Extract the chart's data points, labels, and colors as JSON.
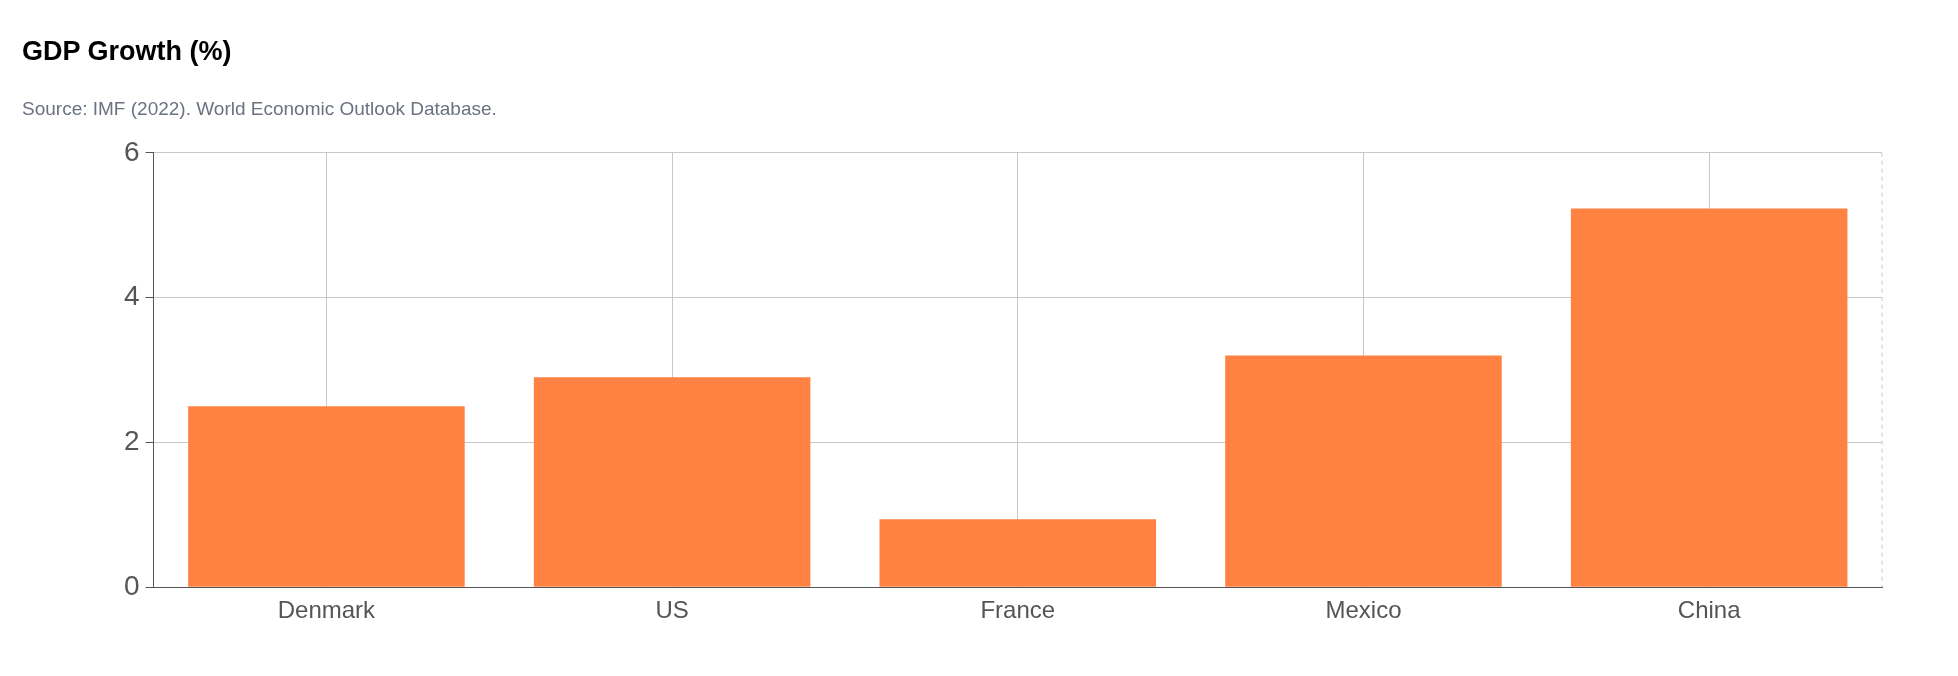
{
  "chart_data": {
    "type": "bar",
    "title": "GDP Growth (%)",
    "subtitle": "Source: IMF (2022). World Economic Outlook Database.",
    "categories": [
      "Denmark",
      "US",
      "France",
      "Mexico",
      "China"
    ],
    "values": [
      2.5,
      2.9,
      0.94,
      3.2,
      5.23
    ],
    "color": "#ff8243",
    "ylim": [
      0,
      6
    ],
    "yticks": [
      0,
      2,
      4,
      6
    ],
    "grid": true,
    "legend": false
  }
}
